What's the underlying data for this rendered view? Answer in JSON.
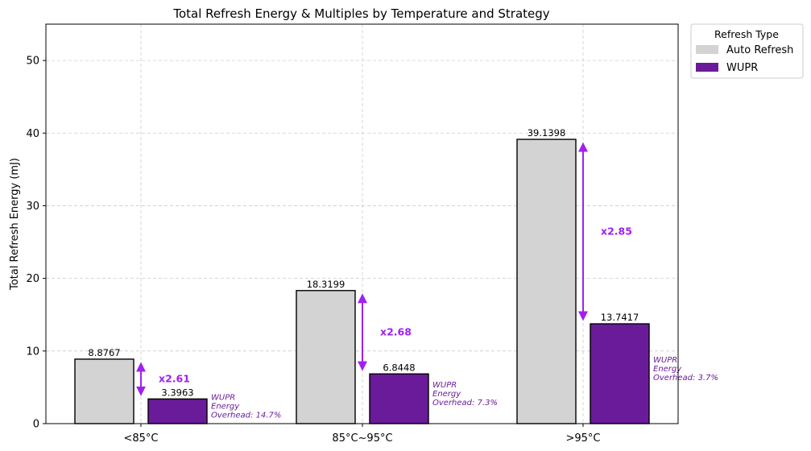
{
  "chart_data": {
    "type": "bar",
    "title": "Total Refresh Energy & Multiples by Temperature and Strategy",
    "xlabel": "",
    "ylabel": "Total Refresh Energy (mJ)",
    "ylim": [
      0,
      55
    ],
    "yticks": [
      0,
      10,
      20,
      30,
      40,
      50
    ],
    "grid": true,
    "categories": [
      "<85°C",
      "85°C~95°C",
      ">95°C"
    ],
    "series": [
      {
        "name": "Auto Refresh",
        "values": [
          8.8767,
          18.3199,
          39.1398
        ],
        "value_labels": [
          "8.8767",
          "18.3199",
          "39.1398"
        ],
        "color": "#d3d3d3"
      },
      {
        "name": "WUPR",
        "values": [
          3.3963,
          6.8448,
          13.7417
        ],
        "value_labels": [
          "3.3963",
          "6.8448",
          "13.7417"
        ],
        "color": "#6a1b9a"
      }
    ],
    "multiples": [
      "x2.61",
      "x2.68",
      "x2.85"
    ],
    "multiple_color": "#a020f0",
    "overheads": [
      [
        "WUPR",
        "Energy",
        "Overhead: 14.7%"
      ],
      [
        "WUPR",
        "Energy",
        "Overhead: 7.3%"
      ],
      [
        "WUPR",
        "Energy",
        "Overhead: 3.7%"
      ]
    ],
    "legend": {
      "title": "Refresh Type",
      "position": "outside-top-right"
    }
  }
}
